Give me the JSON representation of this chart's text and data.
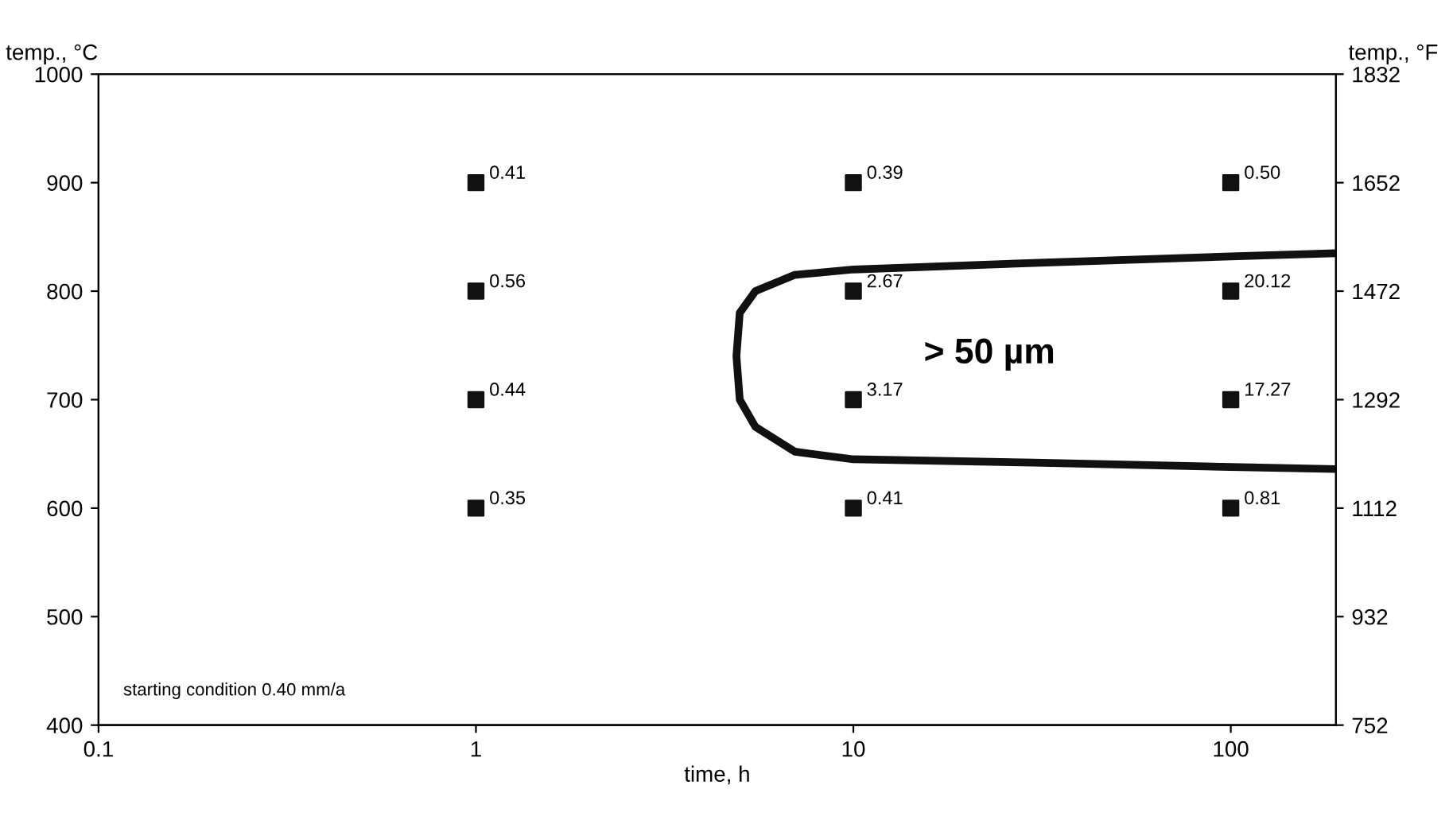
{
  "chart_data": {
    "type": "scatter",
    "xlabel": "time, h",
    "ylabel": "temp., °C",
    "y2label": "temp., °F",
    "log": "x",
    "xlim": [
      0.1,
      190
    ],
    "xticks": [
      0.1,
      1,
      10,
      100
    ],
    "ylim": [
      400,
      1000
    ],
    "yticks": [
      400,
      500,
      600,
      700,
      800,
      900,
      1000
    ],
    "y2lim": [
      752,
      1832
    ],
    "y2ticks": [
      752,
      932,
      1112,
      1292,
      1472,
      1652,
      1832
    ],
    "grid": false,
    "legend": false,
    "marker": "square",
    "series": [
      {
        "color": "#111111",
        "x": [
          1,
          1,
          1,
          1,
          10,
          10,
          10,
          10,
          100,
          100,
          100,
          100
        ],
        "values": [
          900,
          800,
          700,
          600,
          900,
          800,
          700,
          600,
          900,
          800,
          700,
          600
        ]
      },
      {
        "type": "line",
        "color": "#111111",
        "line_style": "solid",
        "marker": "none",
        "x": [
          190,
          100,
          30,
          10,
          7,
          5.5,
          5,
          4.9,
          5,
          5.5,
          7,
          10,
          30,
          100,
          190
        ],
        "values": [
          835,
          832,
          826,
          820,
          815,
          800,
          780,
          740,
          700,
          675,
          652,
          645,
          642,
          638,
          636
        ]
      }
    ],
    "annotations": [
      "> 50 µm",
      "starting condition 0.40 mm/a",
      {
        "text": "0.41",
        "x": 1,
        "y": 900
      },
      {
        "text": "0.56",
        "x": 1,
        "y": 800
      },
      {
        "text": "0.44",
        "x": 1,
        "y": 700
      },
      {
        "text": "0.35",
        "x": 1,
        "y": 600
      },
      {
        "text": "0.39",
        "x": 10,
        "y": 900
      },
      {
        "text": "2.67",
        "x": 10,
        "y": 800
      },
      {
        "text": "3.17",
        "x": 10,
        "y": 700
      },
      {
        "text": "0.41",
        "x": 10,
        "y": 600
      },
      {
        "text": "0.50",
        "x": 100,
        "y": 900
      },
      {
        "text": "20.12",
        "x": 100,
        "y": 800
      },
      {
        "text": "17.27",
        "x": 100,
        "y": 700
      },
      {
        "text": "0.81",
        "x": 100,
        "y": 600
      }
    ]
  }
}
